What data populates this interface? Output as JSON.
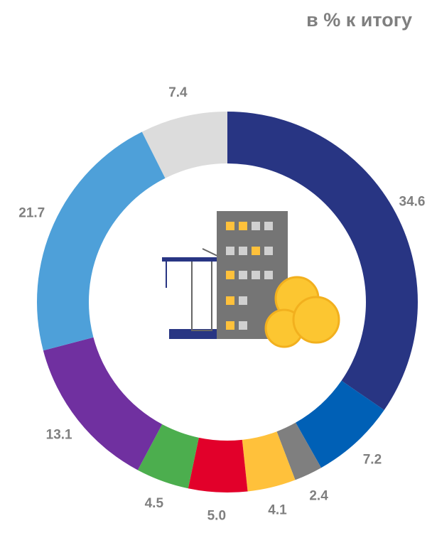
{
  "chart_data": {
    "type": "donut",
    "title": "в % к итогу",
    "values": [
      34.6,
      7.2,
      2.4,
      4.1,
      5.0,
      4.5,
      13.1,
      21.7,
      7.4
    ],
    "value_labels": [
      "34.6",
      "7.2",
      "2.4",
      "4.1",
      "5.0",
      "4.5",
      "13.1",
      "21.7",
      "7.4"
    ],
    "colors": [
      "#283583",
      "#0060b6",
      "#7f7f7f",
      "#ffc13b",
      "#e2002a",
      "#4cae4e",
      "#7030a0",
      "#4ea0d9",
      "#dcdcdc"
    ]
  }
}
